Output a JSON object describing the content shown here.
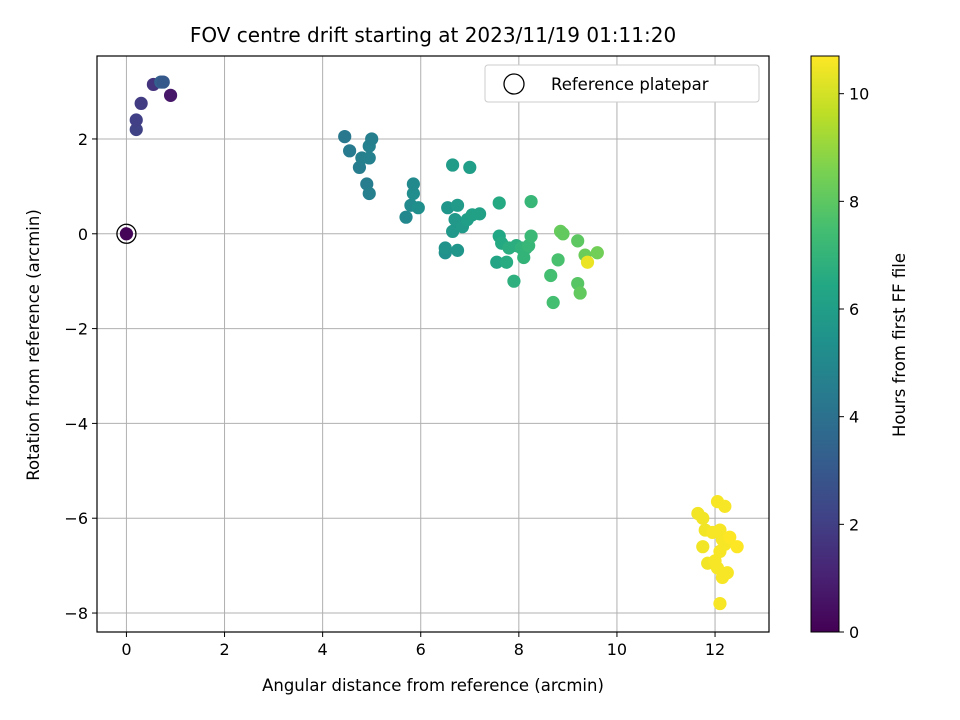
{
  "chart_data": {
    "type": "scatter",
    "title": "FOV centre drift starting at 2023/11/19 01:11:20",
    "xlabel": "Angular distance from reference (arcmin)",
    "ylabel": "Rotation from reference (arcmin)",
    "xlim": [
      -0.6,
      13.1
    ],
    "ylim": [
      -8.4,
      3.75
    ],
    "x_ticks": [
      0,
      2,
      4,
      6,
      8,
      10,
      12
    ],
    "y_ticks": [
      -8,
      -6,
      -4,
      -2,
      0,
      2
    ],
    "grid": true,
    "legend": {
      "position": "top-right",
      "entries": [
        "Reference platepar"
      ]
    },
    "reference_point": {
      "x": 0,
      "y": 0,
      "label": "Reference platepar"
    },
    "colorbar": {
      "label": "Hours from first FF file",
      "range": [
        0,
        10.7
      ],
      "ticks": [
        0,
        2,
        4,
        6,
        8,
        10
      ],
      "colormap": "viridis"
    },
    "points": [
      {
        "x": 0.0,
        "y": 0.0,
        "hours": 0.1
      },
      {
        "x": 0.2,
        "y": 2.2,
        "hours": 2.1
      },
      {
        "x": 0.2,
        "y": 2.4,
        "hours": 2.0
      },
      {
        "x": 0.3,
        "y": 2.75,
        "hours": 1.9
      },
      {
        "x": 0.55,
        "y": 3.15,
        "hours": 1.6
      },
      {
        "x": 0.7,
        "y": 3.2,
        "hours": 3.3
      },
      {
        "x": 0.75,
        "y": 3.2,
        "hours": 3.0
      },
      {
        "x": 0.9,
        "y": 2.92,
        "hours": 0.7
      },
      {
        "x": 4.45,
        "y": 2.05,
        "hours": 4.3
      },
      {
        "x": 4.55,
        "y": 1.75,
        "hours": 4.4
      },
      {
        "x": 4.75,
        "y": 1.4,
        "hours": 4.5
      },
      {
        "x": 4.8,
        "y": 1.6,
        "hours": 4.6
      },
      {
        "x": 4.9,
        "y": 1.05,
        "hours": 4.5
      },
      {
        "x": 4.95,
        "y": 0.85,
        "hours": 4.6
      },
      {
        "x": 4.95,
        "y": 1.6,
        "hours": 4.7
      },
      {
        "x": 4.95,
        "y": 1.85,
        "hours": 4.7
      },
      {
        "x": 5.0,
        "y": 2.0,
        "hours": 4.6
      },
      {
        "x": 5.7,
        "y": 0.35,
        "hours": 5.0
      },
      {
        "x": 5.8,
        "y": 0.6,
        "hours": 5.1
      },
      {
        "x": 5.85,
        "y": 0.85,
        "hours": 5.2
      },
      {
        "x": 5.85,
        "y": 1.05,
        "hours": 5.1
      },
      {
        "x": 5.95,
        "y": 0.55,
        "hours": 5.3
      },
      {
        "x": 6.5,
        "y": -0.4,
        "hours": 5.4
      },
      {
        "x": 6.5,
        "y": -0.3,
        "hours": 5.5
      },
      {
        "x": 6.55,
        "y": 0.55,
        "hours": 5.6
      },
      {
        "x": 6.65,
        "y": 0.05,
        "hours": 5.7
      },
      {
        "x": 6.65,
        "y": 1.45,
        "hours": 5.9
      },
      {
        "x": 6.7,
        "y": 0.3,
        "hours": 5.7
      },
      {
        "x": 6.75,
        "y": 0.6,
        "hours": 5.8
      },
      {
        "x": 6.75,
        "y": -0.35,
        "hours": 5.6
      },
      {
        "x": 6.85,
        "y": 0.15,
        "hours": 5.8
      },
      {
        "x": 6.95,
        "y": 0.3,
        "hours": 6.0
      },
      {
        "x": 7.0,
        "y": 1.4,
        "hours": 6.0
      },
      {
        "x": 7.05,
        "y": 0.4,
        "hours": 6.1
      },
      {
        "x": 7.2,
        "y": 0.42,
        "hours": 6.1
      },
      {
        "x": 7.55,
        "y": -0.6,
        "hours": 6.3
      },
      {
        "x": 7.6,
        "y": 0.65,
        "hours": 6.5
      },
      {
        "x": 7.6,
        "y": -0.05,
        "hours": 6.4
      },
      {
        "x": 7.65,
        "y": -0.2,
        "hours": 6.5
      },
      {
        "x": 7.75,
        "y": -0.6,
        "hours": 6.6
      },
      {
        "x": 7.8,
        "y": -0.3,
        "hours": 6.7
      },
      {
        "x": 7.9,
        "y": -1.0,
        "hours": 6.8
      },
      {
        "x": 7.95,
        "y": -0.25,
        "hours": 6.7
      },
      {
        "x": 8.05,
        "y": -0.3,
        "hours": 6.9
      },
      {
        "x": 8.1,
        "y": -0.5,
        "hours": 7.0
      },
      {
        "x": 8.15,
        "y": -0.3,
        "hours": 7.0
      },
      {
        "x": 8.2,
        "y": -0.25,
        "hours": 7.1
      },
      {
        "x": 8.25,
        "y": 0.68,
        "hours": 7.1
      },
      {
        "x": 8.25,
        "y": -0.05,
        "hours": 7.2
      },
      {
        "x": 8.65,
        "y": -0.88,
        "hours": 7.5
      },
      {
        "x": 8.7,
        "y": -1.45,
        "hours": 7.5
      },
      {
        "x": 8.8,
        "y": -0.55,
        "hours": 7.6
      },
      {
        "x": 8.85,
        "y": 0.05,
        "hours": 8.2
      },
      {
        "x": 8.9,
        "y": 0.0,
        "hours": 8.1
      },
      {
        "x": 9.2,
        "y": -1.05,
        "hours": 7.9
      },
      {
        "x": 9.2,
        "y": -0.15,
        "hours": 8.0
      },
      {
        "x": 9.25,
        "y": -1.25,
        "hours": 8.1
      },
      {
        "x": 9.35,
        "y": -0.45,
        "hours": 8.3
      },
      {
        "x": 9.4,
        "y": -0.6,
        "hours": 10.4
      },
      {
        "x": 9.6,
        "y": -0.4,
        "hours": 8.4
      },
      {
        "x": 11.65,
        "y": -5.9,
        "hours": 10.5
      },
      {
        "x": 11.75,
        "y": -6.6,
        "hours": 10.5
      },
      {
        "x": 11.75,
        "y": -6.0,
        "hours": 10.5
      },
      {
        "x": 11.8,
        "y": -6.25,
        "hours": 10.5
      },
      {
        "x": 11.85,
        "y": -6.95,
        "hours": 10.5
      },
      {
        "x": 11.95,
        "y": -6.3,
        "hours": 10.6
      },
      {
        "x": 12.0,
        "y": -6.9,
        "hours": 10.6
      },
      {
        "x": 12.05,
        "y": -7.05,
        "hours": 10.6
      },
      {
        "x": 12.05,
        "y": -5.65,
        "hours": 10.6
      },
      {
        "x": 12.1,
        "y": -6.7,
        "hours": 10.6
      },
      {
        "x": 12.1,
        "y": -6.25,
        "hours": 10.6
      },
      {
        "x": 12.1,
        "y": -7.8,
        "hours": 10.6
      },
      {
        "x": 12.15,
        "y": -7.25,
        "hours": 10.6
      },
      {
        "x": 12.15,
        "y": -6.45,
        "hours": 10.6
      },
      {
        "x": 12.2,
        "y": -6.55,
        "hours": 10.6
      },
      {
        "x": 12.2,
        "y": -5.75,
        "hours": 10.6
      },
      {
        "x": 12.25,
        "y": -7.15,
        "hours": 10.6
      },
      {
        "x": 12.3,
        "y": -6.4,
        "hours": 10.7
      },
      {
        "x": 12.45,
        "y": -6.6,
        "hours": 10.7
      }
    ]
  }
}
